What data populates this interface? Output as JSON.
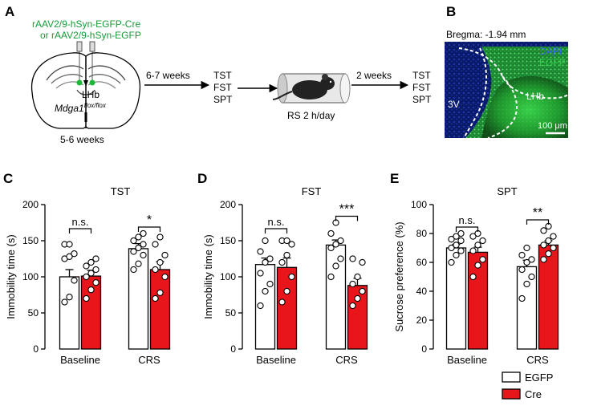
{
  "panels": {
    "a": "A",
    "b": "B",
    "c": "C",
    "d": "D",
    "e": "E"
  },
  "schematic": {
    "virus_line1": "rAAV2/9-hSyn-EGFP-Cre",
    "virus_line2": "or rAAV2/9-hSyn-EGFP",
    "region": "LHb",
    "mouse_line": "Mdga1",
    "mouse_line_sup": "flox/flox",
    "age": "5-6 weeks",
    "interval1": "6-7 weeks",
    "tests1": [
      "TST",
      "FST",
      "SPT"
    ],
    "stress": "RS 2 h/day",
    "interval2": "2 weeks",
    "tests2": [
      "TST",
      "FST",
      "SPT"
    ]
  },
  "histology": {
    "bregma": "Bregma: -1.94 mm",
    "dapi": "DAPI",
    "egfp": "EGFP",
    "label_3v": "3V",
    "label_lhb": "LHb",
    "scale": "100 μm",
    "colors": {
      "dapi": "#3a5cff",
      "egfp": "#35d24a"
    }
  },
  "legend": {
    "egfp": "EGFP",
    "cre": "Cre",
    "colors": {
      "egfp": "#ffffff",
      "cre": "#e8161b"
    }
  },
  "chart_data": [
    {
      "type": "bar",
      "title": "TST",
      "ylabel": "Immobility time (s)",
      "ylim": [
        0,
        200
      ],
      "yticks": [
        0,
        50,
        100,
        150,
        200
      ],
      "categories": [
        "Baseline",
        "CRS"
      ],
      "series": [
        {
          "name": "EGFP",
          "values": [
            100,
            139
          ],
          "sem": [
            10,
            7
          ],
          "points": [
            [
              65,
              72,
              95,
              125,
              128,
              132,
              145,
              145
            ],
            [
              110,
              118,
              130,
              135,
              140,
              145,
              150,
              155,
              160
            ]
          ]
        },
        {
          "name": "Cre",
          "values": [
            101,
            110
          ],
          "sem": [
            8,
            11
          ],
          "points": [
            [
              70,
              82,
              92,
              100,
              105,
              110,
              115,
              120,
              125
            ],
            [
              70,
              78,
              100,
              110,
              120,
              130,
              145,
              155
            ]
          ]
        }
      ],
      "significance": [
        "n.s.",
        "*"
      ]
    },
    {
      "type": "bar",
      "title": "FST",
      "ylabel": "Immobility time (s)",
      "ylim": [
        0,
        200
      ],
      "yticks": [
        0,
        50,
        100,
        150,
        200
      ],
      "categories": [
        "Baseline",
        "CRS"
      ],
      "series": [
        {
          "name": "EGFP",
          "values": [
            117,
            144
          ],
          "sem": [
            9,
            7
          ],
          "points": [
            [
              60,
              80,
              90,
              105,
              120,
              125,
              135,
              150
            ],
            [
              100,
              115,
              125,
              140,
              145,
              150,
              160,
              175
            ]
          ]
        },
        {
          "name": "Cre",
          "values": [
            113,
            88
          ],
          "sem": [
            13,
            10
          ],
          "points": [
            [
              65,
              80,
              100,
              120,
              130,
              145,
              150,
              150
            ],
            [
              60,
              70,
              80,
              90,
              100,
              120,
              125
            ]
          ]
        }
      ],
      "significance": [
        "n.s.",
        "***"
      ]
    },
    {
      "type": "bar",
      "title": "SPT",
      "ylabel": "Sucrose preference (%)",
      "ylim": [
        0,
        100
      ],
      "yticks": [
        0,
        20,
        40,
        60,
        80,
        100
      ],
      "categories": [
        "Baseline",
        "CRS"
      ],
      "series": [
        {
          "name": "EGFP",
          "values": [
            70,
            57
          ],
          "sem": [
            2.5,
            4.5
          ],
          "points": [
            [
              60,
              65,
              68,
              70,
              72,
              75,
              76,
              78,
              80
            ],
            [
              35,
              45,
              50,
              55,
              60,
              62,
              65,
              70
            ]
          ]
        },
        {
          "name": "Cre",
          "values": [
            67,
            72
          ],
          "sem": [
            3.5,
            3
          ],
          "points": [
            [
              50,
              58,
              62,
              68,
              72,
              75,
              78,
              80
            ],
            [
              62,
              66,
              70,
              72,
              75,
              78,
              82,
              85
            ]
          ]
        }
      ],
      "significance": [
        "n.s.",
        "**"
      ]
    }
  ]
}
